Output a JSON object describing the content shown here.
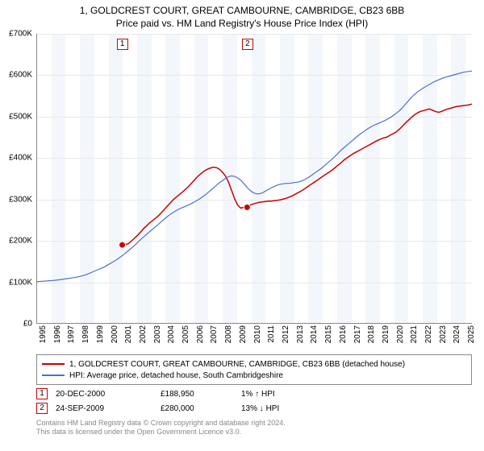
{
  "title": {
    "main": "1, GOLDCREST COURT, GREAT CAMBOURNE, CAMBRIDGE, CB23 6BB",
    "sub": "Price paid vs. HM Land Registry's House Price Index (HPI)"
  },
  "chart": {
    "type": "line",
    "background_color": "#ffffff",
    "grid_color": "#e8e8e8",
    "axis_color": "#888888",
    "x_range": [
      1995,
      2025.5
    ],
    "y_range": [
      0,
      700000
    ],
    "y_ticks": [
      0,
      100000,
      200000,
      300000,
      400000,
      500000,
      600000,
      700000
    ],
    "y_tick_labels": [
      "£0",
      "£100K",
      "£200K",
      "£300K",
      "£400K",
      "£500K",
      "£600K",
      "£700K"
    ],
    "x_ticks": [
      1995,
      1996,
      1997,
      1998,
      1999,
      2000,
      2001,
      2002,
      2003,
      2004,
      2005,
      2006,
      2007,
      2008,
      2009,
      2010,
      2011,
      2012,
      2013,
      2014,
      2015,
      2016,
      2017,
      2018,
      2019,
      2020,
      2021,
      2022,
      2023,
      2024,
      2025
    ],
    "band_color": "#f3f7fb",
    "series": [
      {
        "key": "property",
        "label": "1, GOLDCREST COURT, GREAT CAMBOURNE, CAMBRIDGE, CB23 6BB (detached house)",
        "color": "#cc0000",
        "line_width": 1.5,
        "x_start": 2000.97,
        "points": [
          188950,
          190000,
          192000,
          198000,
          205000,
          212000,
          220000,
          228000,
          235000,
          242000,
          248000,
          254000,
          260000,
          268000,
          276000,
          284000,
          292000,
          300000,
          306000,
          312000,
          318000,
          325000,
          332000,
          340000,
          348000,
          356000,
          362000,
          368000,
          372000,
          375000,
          377000,
          376000,
          372000,
          365000,
          355000,
          340000,
          320000,
          300000,
          285000,
          278000,
          280000,
          282000,
          285000,
          288000,
          290000,
          292000,
          293000,
          294000,
          295000,
          295000,
          296000,
          297000,
          298000,
          300000,
          302000,
          305000,
          308000,
          312000,
          316000,
          320000,
          325000,
          330000,
          335000,
          340000,
          345000,
          350000,
          355000,
          360000,
          365000,
          370000,
          376000,
          382000,
          388000,
          395000,
          400000,
          405000,
          410000,
          414000,
          418000,
          422000,
          426000,
          430000,
          434000,
          438000,
          442000,
          445000,
          448000,
          450000,
          454000,
          458000,
          462000,
          468000,
          475000,
          483000,
          490000,
          497000,
          503000,
          508000,
          512000,
          514000,
          516000,
          518000,
          515000,
          512000,
          510000,
          512000,
          515000,
          518000,
          520000,
          522000,
          524000,
          525000,
          526000,
          527000,
          528000,
          530000
        ],
        "transactions": [
          {
            "n": 1,
            "x": 2000.97,
            "y": 188950,
            "callout_color": "#cc0000"
          },
          {
            "n": 2,
            "x": 2009.73,
            "y": 280000,
            "callout_color": "#cc0000"
          }
        ]
      },
      {
        "key": "hpi",
        "label": "HPI: Average price, detached house, South Cambridgeshire",
        "color": "#4a6fd0",
        "line_width": 1.2,
        "x_start": 1995,
        "points": [
          100000,
          100500,
          101000,
          101500,
          102000,
          102500,
          103000,
          104000,
          105000,
          106000,
          107000,
          108000,
          109000,
          110000,
          111500,
          113000,
          115000,
          117000,
          120000,
          123000,
          126000,
          129000,
          132000,
          135000,
          139000,
          143000,
          147000,
          151000,
          156000,
          161000,
          166000,
          172000,
          178000,
          184000,
          190000,
          197000,
          204000,
          210000,
          216000,
          222000,
          228000,
          234000,
          240000,
          246000,
          252000,
          258000,
          263000,
          268000,
          272000,
          276000,
          279000,
          282000,
          285000,
          288000,
          292000,
          296000,
          300000,
          305000,
          310000,
          316000,
          322000,
          328000,
          334000,
          340000,
          345000,
          350000,
          354000,
          356000,
          355000,
          352000,
          347000,
          340000,
          332000,
          324000,
          318000,
          314000,
          312000,
          313000,
          316000,
          320000,
          324000,
          328000,
          331000,
          334000,
          336000,
          337000,
          338000,
          338000,
          339000,
          340000,
          341000,
          343000,
          346000,
          350000,
          354000,
          359000,
          364000,
          369000,
          374000,
          380000,
          386000,
          392000,
          398000,
          405000,
          412000,
          419000,
          425000,
          431000,
          437000,
          443000,
          449000,
          455000,
          460000,
          465000,
          470000,
          474000,
          478000,
          481000,
          484000,
          487000,
          490000,
          494000,
          498000,
          503000,
          508000,
          514000,
          521000,
          529000,
          537000,
          545000,
          552000,
          558000,
          563000,
          568000,
          572000,
          576000,
          580000,
          584000,
          587000,
          590000,
          593000,
          595000,
          597000,
          599000,
          601000,
          603000,
          605000,
          607000,
          608000,
          609000,
          610000
        ]
      }
    ]
  },
  "legend": {
    "rows": [
      {
        "color": "#cc0000",
        "label": "1, GOLDCREST COURT, GREAT CAMBOURNE, CAMBRIDGE, CB23 6BB (detached house)"
      },
      {
        "color": "#4a6fd0",
        "label": "HPI: Average price, detached house, South Cambridgeshire"
      }
    ]
  },
  "transactions_table": {
    "rows": [
      {
        "badge": "1",
        "badge_color": "#cc0000",
        "date": "20-DEC-2000",
        "price": "£188,950",
        "hpi": "1% ↑ HPI"
      },
      {
        "badge": "2",
        "badge_color": "#cc0000",
        "date": "24-SEP-2009",
        "price": "£280,000",
        "hpi": "13% ↓ HPI"
      }
    ]
  },
  "footer": {
    "line1": "Contains HM Land Registry data © Crown copyright and database right 2024.",
    "line2": "This data is licensed under the Open Government Licence v3.0."
  }
}
